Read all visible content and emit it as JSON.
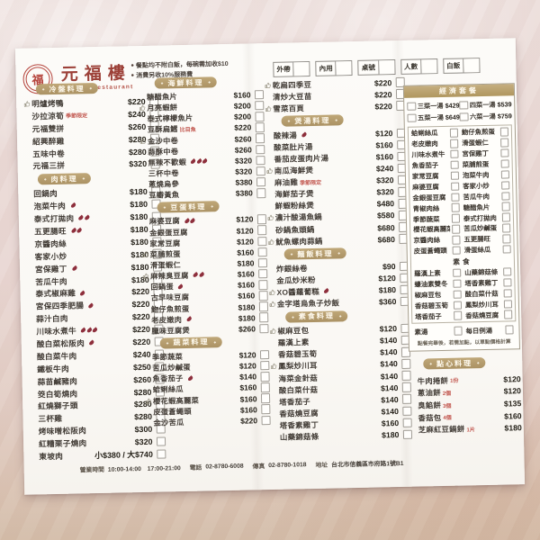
{
  "header": {
    "logo_glyph": "福",
    "brand_zh": "元福樓",
    "brand_en": "Yuan Fu Restaurant",
    "notes": [
      {
        "text": "餐點均不附白飯，每碗需加收$10"
      },
      {
        "text": "消費另收10%服務費"
      }
    ],
    "order_boxes": [
      {
        "label": "外帶"
      },
      {
        "label": "內用"
      },
      {
        "label": "桌號"
      },
      {
        "label": "人數"
      },
      {
        "label": "白飯"
      }
    ]
  },
  "sections": {
    "cold": {
      "title": "冷盤料理",
      "items": [
        {
          "name": "明爐烤鴨",
          "price": "$220",
          "thumb": true
        },
        {
          "name": "沙拉涼筍",
          "price": "$240",
          "tag": "季節限定"
        },
        {
          "name": "元福雙拼",
          "price": "$260"
        },
        {
          "name": "紹興醉雞",
          "price": "$280"
        },
        {
          "name": "五味中卷",
          "price": "$280"
        },
        {
          "name": "元福三拼",
          "price": "$320"
        }
      ]
    },
    "meat": {
      "title": "肉料理",
      "items": [
        {
          "name": "回鍋肉",
          "price": "$180"
        },
        {
          "name": "泡菜牛肉",
          "price": "$180",
          "chili": 1
        },
        {
          "name": "泰式打拋肉",
          "price": "$180",
          "chili": 2
        },
        {
          "name": "五更腸旺",
          "price": "$180",
          "chili": 2
        },
        {
          "name": "京醬肉絲",
          "price": "$180"
        },
        {
          "name": "客家小炒",
          "price": "$180"
        },
        {
          "name": "宮保雞丁",
          "price": "$180",
          "chili": 1
        },
        {
          "name": "苦瓜牛肉",
          "price": "$180"
        },
        {
          "name": "泰式椒麻雞",
          "price": "$220",
          "chili": 1
        },
        {
          "name": "宮保四季肥腸",
          "price": "$220",
          "chili": 1
        },
        {
          "name": "蒜汁白肉",
          "price": "$220"
        },
        {
          "name": "川味水煮牛",
          "price": "$220",
          "chili": 3
        },
        {
          "name": "酸白菜松阪肉",
          "price": "$220",
          "chili": 1
        },
        {
          "name": "酸白菜牛肉",
          "price": "$240"
        },
        {
          "name": "鐵板牛肉",
          "price": "$250"
        },
        {
          "name": "蒜苗鹹豬肉",
          "price": "$260"
        },
        {
          "name": "筊白筍燒肉",
          "price": "$280"
        },
        {
          "name": "紅燒獅子頭",
          "price": "$280"
        },
        {
          "name": "三杯雞",
          "price": "$280"
        },
        {
          "name": "烤味噌松阪肉",
          "price": "$300"
        },
        {
          "name": "紅糟栗子燒肉",
          "price": "$320"
        },
        {
          "name": "東坡肉",
          "price": "小$380 / 大$740"
        }
      ]
    },
    "seafood": {
      "title": "海鮮料理",
      "items": [
        {
          "name": "糖醋魚片",
          "price": "$160"
        },
        {
          "name": "月亮蝦餅",
          "price": "$200",
          "thumb": true
        },
        {
          "name": "泰式檸檬魚片",
          "price": "$200"
        },
        {
          "name": "豆酥扁鱈",
          "price": "$220",
          "tag": "比目魚"
        },
        {
          "name": "金沙中卷",
          "price": "$260",
          "thumb": true
        },
        {
          "name": "蒜酥中卷",
          "price": "$260"
        },
        {
          "name": "無辣不歡蝦",
          "price": "$320",
          "chili": 3
        },
        {
          "name": "三杯中卷",
          "price": "$320"
        },
        {
          "name": "蔥燒烏參",
          "price": "$380"
        },
        {
          "name": "豆瓣黃魚",
          "price": "$380"
        }
      ]
    },
    "tofu_egg": {
      "title": "豆蛋料理",
      "items": [
        {
          "name": "麻婆豆腐",
          "price": "$120",
          "chili": 2
        },
        {
          "name": "金銀蛋豆腐",
          "price": "$120"
        },
        {
          "name": "家常豆腐",
          "price": "$120"
        },
        {
          "name": "菜脯煎蛋",
          "price": "$160",
          "thumb": true
        },
        {
          "name": "滑蛋蝦仁",
          "price": "$180"
        },
        {
          "name": "麻辣臭豆腐",
          "price": "$160",
          "thumb": true,
          "chili": 2
        },
        {
          "name": "回鍋蛋",
          "price": "$160",
          "chili": 1
        },
        {
          "name": "古早味豆腐",
          "price": "$160"
        },
        {
          "name": "魩仔魚煎蛋",
          "price": "$180"
        },
        {
          "name": "老皮嫩肉",
          "price": "$180",
          "chili": 1
        },
        {
          "name": "臘味豆腐煲",
          "price": "$260"
        }
      ]
    },
    "veg": {
      "title": "蔬菜料理",
      "items": [
        {
          "name": "季節蔬菜",
          "price": "$120"
        },
        {
          "name": "苦瓜炒鹹蛋",
          "price": "$120"
        },
        {
          "name": "魚香茄子",
          "price": "$140",
          "chili": 1
        },
        {
          "name": "蛤蜊絲瓜",
          "price": "$160"
        },
        {
          "name": "櫻花蝦高麗菜",
          "price": "$160",
          "thumb": true
        },
        {
          "name": "皮蛋蒼蠅頭",
          "price": "$160"
        },
        {
          "name": "金沙苦瓜",
          "price": "$220"
        }
      ]
    },
    "veg_extra": {
      "items": [
        {
          "name": "乾扁四季豆",
          "price": "$220",
          "thumb": true
        },
        {
          "name": "清炒大豆苗",
          "price": "$220"
        },
        {
          "name": "雪菜百頁",
          "price": "$220",
          "thumb": true
        }
      ]
    },
    "soup": {
      "title": "煲湯料理",
      "items": [
        {
          "name": "酸辣湯",
          "price": "$120",
          "chili": 1
        },
        {
          "name": "酸菜肚片湯",
          "price": "$160"
        },
        {
          "name": "番茄皮蛋肉片湯",
          "price": "$160"
        },
        {
          "name": "南瓜海鮮煲",
          "price": "$240",
          "thumb": true
        },
        {
          "name": "麻油雞",
          "price": "$320",
          "tag": "季節限定"
        },
        {
          "name": "海鮮茄子煲",
          "price": "$320"
        },
        {
          "name": "鮮蝦粉絲煲",
          "price": "$480"
        },
        {
          "name": "濃汁酸湯魚鍋",
          "price": "$580",
          "thumb": true
        },
        {
          "name": "砂鍋魚頭鍋",
          "price": "$680"
        },
        {
          "name": "魷魚螺肉蒜鍋",
          "price": "$680",
          "thumb": true
        }
      ]
    },
    "noodle_rice": {
      "title": "麵飯料理",
      "items": [
        {
          "name": "炸銀絲卷",
          "price": "$90"
        },
        {
          "name": "金瓜炒米粉",
          "price": "$120"
        },
        {
          "name": "XO醬蘿蔔糕",
          "price": "$180",
          "thumb": true,
          "chili": 1
        },
        {
          "name": "金字塔烏魚子炒飯",
          "price": "$360",
          "thumb": true
        }
      ]
    },
    "vegetarian": {
      "title": "素食料理",
      "items": [
        {
          "name": "椒麻豆包",
          "price": "$120",
          "thumb": true
        },
        {
          "name": "羅漢上素",
          "price": "$140"
        },
        {
          "name": "香菇碧玉筍",
          "price": "$140"
        },
        {
          "name": "鳳梨炒川耳",
          "price": "$140",
          "thumb": true
        },
        {
          "name": "海菜金針菇",
          "price": "$140"
        },
        {
          "name": "酸白菜什菇",
          "price": "$140"
        },
        {
          "name": "塔香茄子",
          "price": "$140"
        },
        {
          "name": "香菇燒豆腐",
          "price": "$140"
        },
        {
          "name": "塔香素雞丁",
          "price": "$160"
        },
        {
          "name": "山藥錦菇條",
          "price": "$180"
        }
      ]
    },
    "dimsum": {
      "title": "點心料理",
      "items": [
        {
          "name": "牛肉捲餅",
          "tag": "1份",
          "price": "$120"
        },
        {
          "name": "蔥油餅",
          "tag": "2個",
          "price": "$120"
        },
        {
          "name": "臭餡餅",
          "tag": "3個",
          "price": "$135"
        },
        {
          "name": "香菇包",
          "tag": "4個",
          "price": "$160"
        },
        {
          "name": "芝麻紅豆鍋餅",
          "tag": "1片",
          "price": "$180"
        }
      ]
    }
  },
  "set_menu": {
    "title": "經濟套餐",
    "options": [
      {
        "label": "三菜一湯",
        "price": "$429"
      },
      {
        "label": "四菜一湯",
        "price": "$539"
      },
      {
        "label": "五菜一湯",
        "price": "$649"
      },
      {
        "label": "六菜一湯",
        "price": "$759"
      }
    ],
    "pairs": [
      {
        "l": "蛤蜊絲瓜",
        "r": "魩仔魚煎蛋"
      },
      {
        "l": "老皮嫩肉",
        "r": "滑蛋蝦仁"
      },
      {
        "l": "川味水煮牛",
        "r": "宮保雞丁"
      },
      {
        "l": "魚香茄子",
        "r": "菜脯煎蛋"
      },
      {
        "l": "家常豆腐",
        "r": "泡菜牛肉"
      },
      {
        "l": "麻婆豆腐",
        "r": "客家小炒"
      },
      {
        "l": "金銀蛋豆腐",
        "r": "苦瓜牛肉"
      },
      {
        "l": "青椒肉絲",
        "r": "糖醋魚片"
      },
      {
        "l": "季節蔬菜",
        "r": "泰式打拋肉"
      },
      {
        "l": "櫻花蝦高麗菜",
        "r": "苦瓜炒鹹蛋"
      },
      {
        "l": "京醬肉絲",
        "r": "五更腸旺"
      },
      {
        "l": "皮蛋蒼蠅頭",
        "r": "滑蛋絲瓜"
      }
    ],
    "veg_subtitle": "素食",
    "veg_pairs": [
      {
        "l": "羅漢上素",
        "r": "山藥錦菇條"
      },
      {
        "l": "蠔油素雙冬",
        "r": "塔香素雞丁"
      },
      {
        "l": "椒麻豆包",
        "r": "酸白菜什菇"
      },
      {
        "l": "香菇碧玉筍",
        "r": "鳳梨炒川耳"
      },
      {
        "l": "塔香茄子",
        "r": "香菇燒豆腐"
      }
    ],
    "soup_row": {
      "l": "素湯",
      "r": "每日例湯"
    },
    "note": "點餐完畢後，若需加點，以單點價格計算"
  },
  "footer": {
    "hours_label": "營業時間",
    "hours": "10:00-14:00　17:00-21:00",
    "tel_label": "電話",
    "tel": "02-8780-6008",
    "fax_label": "傳真",
    "fax": "02-8780-1018",
    "addr_label": "地址",
    "addr": "台北市信義區市府路1號B1"
  }
}
